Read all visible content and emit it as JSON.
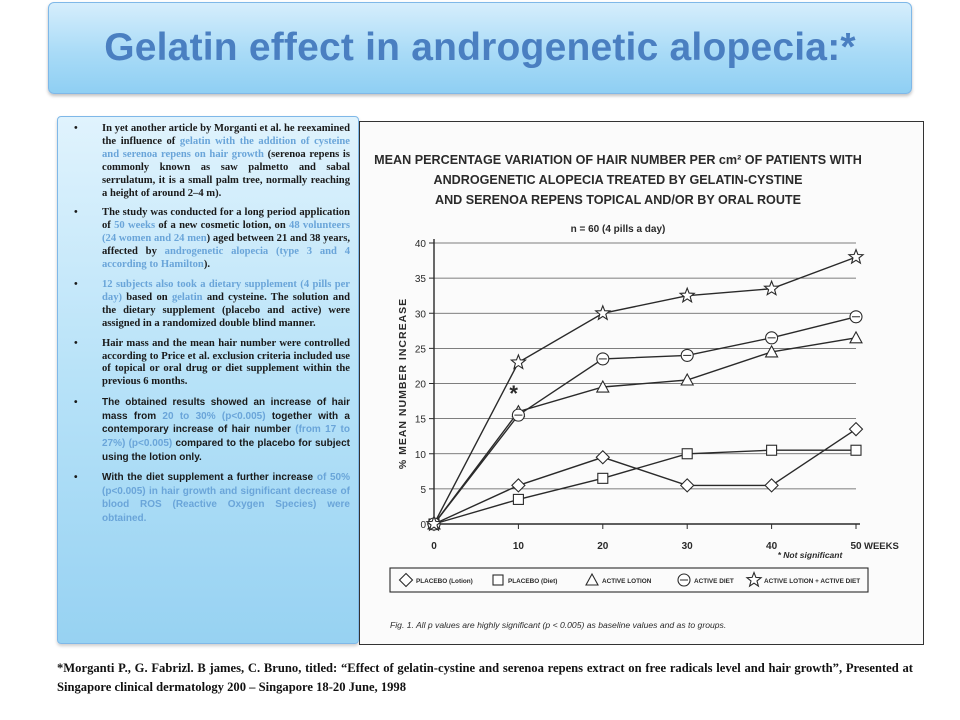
{
  "slide": {
    "title": "Gelatin effect in androgenetic alopecia:*",
    "bullet_glyph": "•",
    "citation": "*Morganti P., G. Fabrizl. B james, C. Bruno, titled: “Effect of gelatin-cystine and serenoa repens extract on free radicals level and hair growth”, Presented at Singapore clinical dermatology 200 – Singapore 18-20 June, 1998"
  },
  "bullets": [
    {
      "parts": [
        {
          "text": "In yet another article by Morganti et al. he reexamined the influence of ",
          "hl": false
        },
        {
          "text": "gelatin with the addition of cysteine and serenoa repens on hair growth",
          "hl": true
        },
        {
          "text": " (serenoa repens is commonly known as saw palmetto and sabal serrulatum, it is a small palm tree, normally reaching a height of around 2–4 m).",
          "hl": false
        }
      ]
    },
    {
      "parts": [
        {
          "text": "The study was conducted for a long period application of ",
          "hl": false
        },
        {
          "text": "50 weeks",
          "hl": true
        },
        {
          "text": " of a new cosmetic lotion, on ",
          "hl": false
        },
        {
          "text": "48 volunteers (24 women and 24 men",
          "hl": true
        },
        {
          "text": ") aged between 21 and 38 years, affected by ",
          "hl": false
        },
        {
          "text": "androgenetic alopecia (type 3 and 4 according to Hamilton",
          "hl": true
        },
        {
          "text": ").",
          "hl": false
        }
      ]
    },
    {
      "parts": [
        {
          "text": "12 subjects also took a dietary supplement (4 pills per day)",
          "hl": true
        },
        {
          "text": " based on ",
          "hl": false
        },
        {
          "text": "gelatin",
          "hl": true
        },
        {
          "text": " and cysteine. The solution and the dietary supplement (placebo and active) were assigned in a randomized double blind manner.",
          "hl": false
        }
      ]
    },
    {
      "parts": [
        {
          "text": "Hair mass and the mean hair number were controlled according to Price et al. exclusion criteria included use of topical or oral drug or diet supplement within the previous 6 months.",
          "hl": false
        }
      ]
    },
    {
      "sans": true,
      "parts": [
        {
          "text": "The obtained results showed an increase of hair mass from ",
          "hl": false
        },
        {
          "text": "20 to 30% (p<0.005)",
          "hl": true
        },
        {
          "text": " together with a contemporary increase of hair number ",
          "hl": false
        },
        {
          "text": "(from 17 to 27%) (p<0.005)",
          "hl": true
        },
        {
          "text": " compared to the placebo for subject using the lotion only.",
          "hl": false
        }
      ]
    },
    {
      "sans": true,
      "parts": [
        {
          "text": "With the diet supplement a further increase ",
          "hl": false
        },
        {
          "text": "of 50% (p<0.005) in hair growth and significant decrease of blood ROS (Reactive Oxygen Species) were obtained.",
          "hl": true
        }
      ]
    }
  ],
  "colors": {
    "title": "#4a7fc1",
    "highlight": "#6aa5d9",
    "panel_top": "#e0f3fd",
    "panel_bottom": "#97d2f2",
    "ink": "#2a2a2a"
  },
  "chart_data": {
    "type": "line",
    "title_lines": [
      "MEAN PERCENTAGE VARIATION OF HAIR NUMBER PER cm² OF PATIENTS WITH",
      "ANDROGENETIC ALOPECIA TREATED BY GELATIN-CYSTINE",
      "AND SERENOA REPENS TOPICAL AND/OR BY ORAL ROUTE"
    ],
    "subtitle": "n = 60 (4 pills a day)",
    "ylabel": "% MEAN NUMBER INCREASE",
    "xlabel": "WEEKS",
    "x": [
      0,
      10,
      20,
      30,
      40,
      50
    ],
    "xlim": [
      0,
      50
    ],
    "ylim": [
      0,
      40
    ],
    "xticks": [
      "0",
      "10",
      "20",
      "30",
      "40",
      "50"
    ],
    "yticks": [
      "0",
      "5",
      "10",
      "15",
      "20",
      "25",
      "30",
      "35",
      "40"
    ],
    "grid": "horizontal",
    "series": [
      {
        "name": "PLACEBO (Lotion)",
        "marker": "diamond",
        "values": [
          0,
          5.5,
          9.5,
          5.5,
          5.5,
          13.5
        ]
      },
      {
        "name": "PLACEBO (Diet)",
        "marker": "square",
        "values": [
          0,
          3.5,
          6.5,
          10,
          10.5,
          10.5
        ]
      },
      {
        "name": "ACTIVE LOTION",
        "marker": "triangle",
        "values": [
          0,
          16,
          19.5,
          20.5,
          24.5,
          26.5
        ]
      },
      {
        "name": "ACTIVE DIET",
        "marker": "circle",
        "values": [
          0,
          15.5,
          23.5,
          24,
          26.5,
          29.5
        ]
      },
      {
        "name": "ACTIVE LOTION + ACTIVE DIET",
        "marker": "star",
        "values": [
          0,
          23,
          30,
          32.5,
          33.5,
          38
        ]
      }
    ],
    "annotations": {
      "star_mark": "*",
      "not_significant": "* Not significant"
    },
    "caption": "Fig. 1. All p values are highly significant (p < 0.005) as baseline values and as to groups."
  }
}
